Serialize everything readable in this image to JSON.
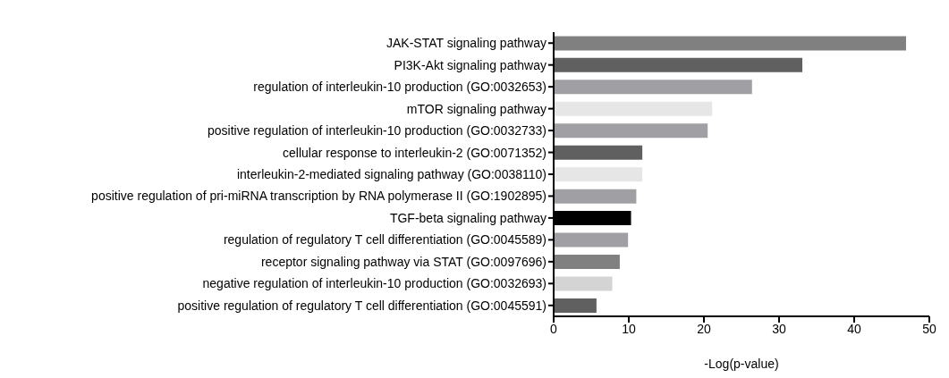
{
  "chart_data": {
    "type": "bar",
    "orientation": "horizontal",
    "xlabel": "-Log(p-value)",
    "categories": [
      "JAK-STAT signaling pathway",
      "PI3K-Akt signaling pathway",
      "regulation of interleukin-10 production (GO:0032653)",
      "mTOR signaling pathway",
      "positive regulation of interleukin-10 production (GO:0032733)",
      "cellular response to interleukin-2 (GO:0071352)",
      "interleukin-2-mediated signaling pathway (GO:0038110)",
      "positive regulation of pri-miRNA transcription by RNA polymerase II (GO:1902895)",
      "TGF-beta signaling pathway",
      "regulation of regulatory T cell differentiation (GO:0045589)",
      "receptor signaling pathway via STAT (GO:0097696)",
      "negative regulation of interleukin-10 production (GO:0032693)",
      "positive regulation of regulatory T cell differentiation (GO:0045591)"
    ],
    "values": [
      46.9,
      33.1,
      26.4,
      21.1,
      20.5,
      11.8,
      11.8,
      11.0,
      10.3,
      9.9,
      8.8,
      7.8,
      5.7
    ],
    "colors": [
      "#808080",
      "#606060",
      "#a0a0a4",
      "#e6e6e6",
      "#a0a0a4",
      "#606060",
      "#e6e6e6",
      "#a0a0a4",
      "#000000",
      "#a0a0a4",
      "#808080",
      "#d4d4d4",
      "#606060"
    ],
    "xlim": [
      0,
      50
    ],
    "xticks": [
      0,
      10,
      20,
      30,
      40,
      50
    ],
    "grid": false,
    "legend": false
  }
}
